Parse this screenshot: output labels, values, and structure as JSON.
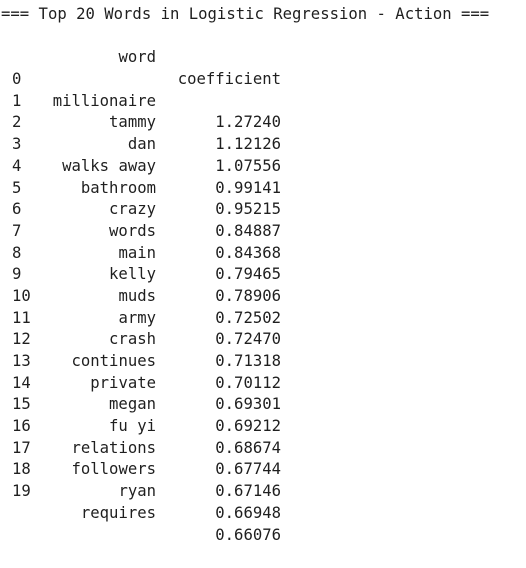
{
  "output": {
    "title": "=== Top 20 Words in Logistic Regression - Action ===",
    "headers": {
      "word": "word",
      "coefficient": "coefficient"
    },
    "rows": [
      {
        "index": "0",
        "word": "millionaire",
        "coefficient": "1.27240"
      },
      {
        "index": "1",
        "word": "tammy",
        "coefficient": "1.12126"
      },
      {
        "index": "2",
        "word": "dan",
        "coefficient": "1.07556"
      },
      {
        "index": "3",
        "word": "walks away",
        "coefficient": "0.99141"
      },
      {
        "index": "4",
        "word": "bathroom",
        "coefficient": "0.95215"
      },
      {
        "index": "5",
        "word": "crazy",
        "coefficient": "0.84887"
      },
      {
        "index": "6",
        "word": "words",
        "coefficient": "0.84368"
      },
      {
        "index": "7",
        "word": "main",
        "coefficient": "0.79465"
      },
      {
        "index": "8",
        "word": "kelly",
        "coefficient": "0.78906"
      },
      {
        "index": "9",
        "word": "muds",
        "coefficient": "0.72502"
      },
      {
        "index": "10",
        "word": "army",
        "coefficient": "0.72470"
      },
      {
        "index": "11",
        "word": "crash",
        "coefficient": "0.71318"
      },
      {
        "index": "12",
        "word": "continues",
        "coefficient": "0.70112"
      },
      {
        "index": "13",
        "word": "private",
        "coefficient": "0.69301"
      },
      {
        "index": "14",
        "word": "megan",
        "coefficient": "0.69212"
      },
      {
        "index": "15",
        "word": "fu yi",
        "coefficient": "0.68674"
      },
      {
        "index": "16",
        "word": "relations",
        "coefficient": "0.67744"
      },
      {
        "index": "17",
        "word": "followers",
        "coefficient": "0.67146"
      },
      {
        "index": "18",
        "word": "ryan",
        "coefficient": "0.66948"
      },
      {
        "index": "19",
        "word": "requires",
        "coefficient": "0.66076"
      }
    ]
  }
}
